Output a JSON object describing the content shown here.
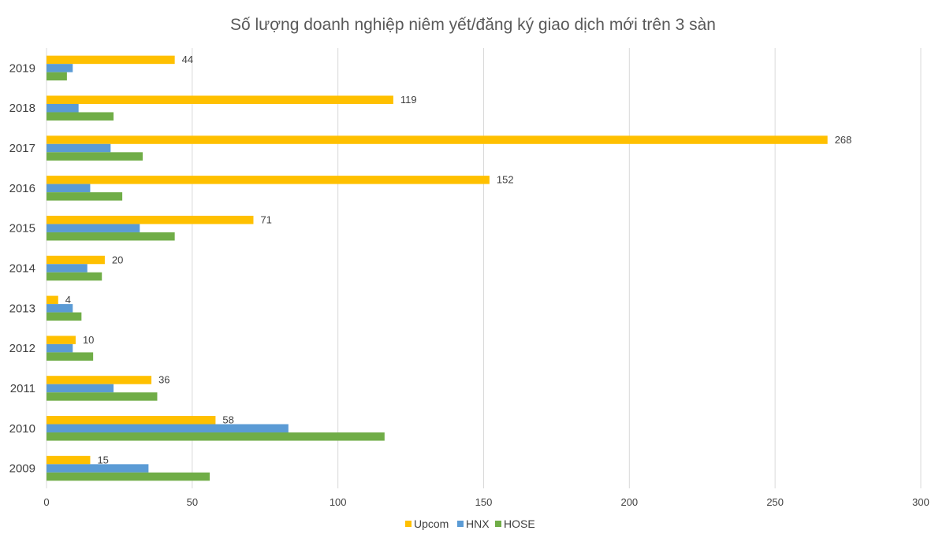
{
  "chart_data": {
    "type": "bar",
    "orientation": "horizontal",
    "title": "Số lượng doanh nghiệp niêm yết/đăng ký giao dịch mới trên 3 sàn",
    "categories": [
      "2019",
      "2018",
      "2017",
      "2016",
      "2015",
      "2014",
      "2013",
      "2012",
      "2011",
      "2010",
      "2009"
    ],
    "series": [
      {
        "name": "Upcom",
        "color": "#FFC000",
        "values": [
          44,
          119,
          268,
          152,
          71,
          20,
          4,
          10,
          36,
          58,
          15
        ],
        "show_labels": true
      },
      {
        "name": "HNX",
        "color": "#5B9BD5",
        "values": [
          9,
          11,
          22,
          15,
          32,
          14,
          9,
          9,
          23,
          83,
          35
        ],
        "show_labels": false
      },
      {
        "name": "HOSE",
        "color": "#70AD47",
        "values": [
          7,
          23,
          33,
          26,
          44,
          19,
          12,
          16,
          38,
          116,
          56
        ],
        "show_labels": false
      }
    ],
    "xlim": [
      0,
      300
    ],
    "xticks": [
      "0",
      "50",
      "100",
      "150",
      "200",
      "250",
      "300"
    ],
    "grid": true,
    "legend": "bottom-center"
  }
}
